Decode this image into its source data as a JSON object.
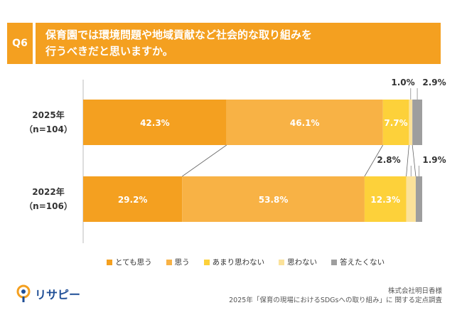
{
  "question": {
    "number": "Q6",
    "line1": "保育園では環境問題や地域貢献など社会的な取り組みを",
    "line2": "行うべきだと思いますか。"
  },
  "colors": {
    "accent": "#f4a020",
    "segments": [
      "#f4a020",
      "#f8b245",
      "#fdd13a",
      "#fbe29a",
      "#9e9e9e"
    ]
  },
  "chart_data": {
    "type": "bar",
    "orientation": "horizontal-stacked-100",
    "categories": [
      {
        "line1": "2025年",
        "line2": "（n=104）"
      },
      {
        "line1": "2022年",
        "line2": "（n=106）"
      }
    ],
    "series": [
      {
        "name": "とても思う",
        "values": [
          42.3,
          29.2
        ],
        "labels": [
          "42.3%",
          "29.2%"
        ]
      },
      {
        "name": "思う",
        "values": [
          46.1,
          53.8
        ],
        "labels": [
          "46.1%",
          "53.8%"
        ]
      },
      {
        "name": "あまり思わない",
        "values": [
          7.7,
          12.3
        ],
        "labels": [
          "7.7%",
          "12.3%"
        ]
      },
      {
        "name": "思わない",
        "values": [
          1.0,
          2.8
        ],
        "labels": [
          "1.0%",
          "2.8%"
        ]
      },
      {
        "name": "答えたくない",
        "values": [
          2.9,
          1.9
        ],
        "labels": [
          "2.9%",
          "1.9%"
        ]
      }
    ],
    "xlim": [
      0,
      100
    ],
    "legend_position": "bottom"
  },
  "footer": {
    "company": "株式会社明日香様",
    "survey": "2025年「保育の現場におけるSDGsへの取り組み」に 関する定点調査"
  },
  "logo": {
    "text": "リサピー"
  }
}
